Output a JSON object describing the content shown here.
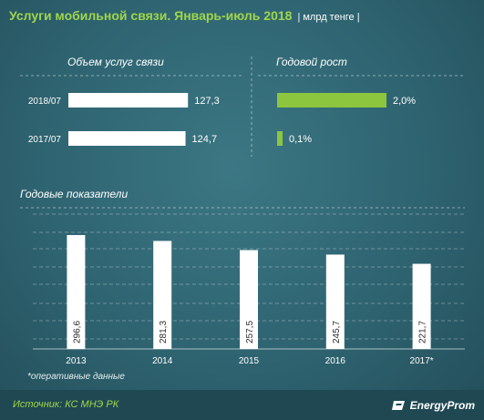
{
  "header": {
    "title": "Услуги мобильной связи.  Январь-июль 2018",
    "unit": "| млрд тенге |"
  },
  "chart_data": [
    {
      "type": "bar",
      "orientation": "horizontal",
      "title": "Объем услуг связи",
      "categories": [
        "2018/07",
        "2017/07"
      ],
      "values": [
        127.3,
        124.7
      ],
      "value_labels": [
        "127,3",
        "124,7"
      ],
      "xlim": [
        0,
        130
      ],
      "bar_color": "#ffffff"
    },
    {
      "type": "bar",
      "orientation": "horizontal",
      "title": "Годовой рост",
      "categories": [
        "2018/07",
        "2017/07"
      ],
      "values": [
        2.0,
        0.1
      ],
      "value_labels": [
        "2,0%",
        "0,1%"
      ],
      "xlim": [
        0,
        2.1
      ],
      "bar_color": "#8cc63f"
    },
    {
      "type": "bar",
      "title": "Годовые показатели",
      "categories": [
        "2013",
        "2014",
        "2015",
        "2016",
        "2017*"
      ],
      "values": [
        296.6,
        281.3,
        257.5,
        245.7,
        221.7
      ],
      "value_labels": [
        "296,6",
        "281,3",
        "257,5",
        "245,7",
        "221,7"
      ],
      "ylim": [
        0,
        300
      ],
      "grid": true,
      "bar_color": "#ffffff"
    }
  ],
  "footnote": "*оперативные данные",
  "footer": {
    "source": "Источник: КС МНЭ РК",
    "logo": "EnergyProm"
  },
  "colors": {
    "accent": "#9fd64b",
    "growth_bar": "#8cc63f",
    "background": "#2e6370"
  }
}
